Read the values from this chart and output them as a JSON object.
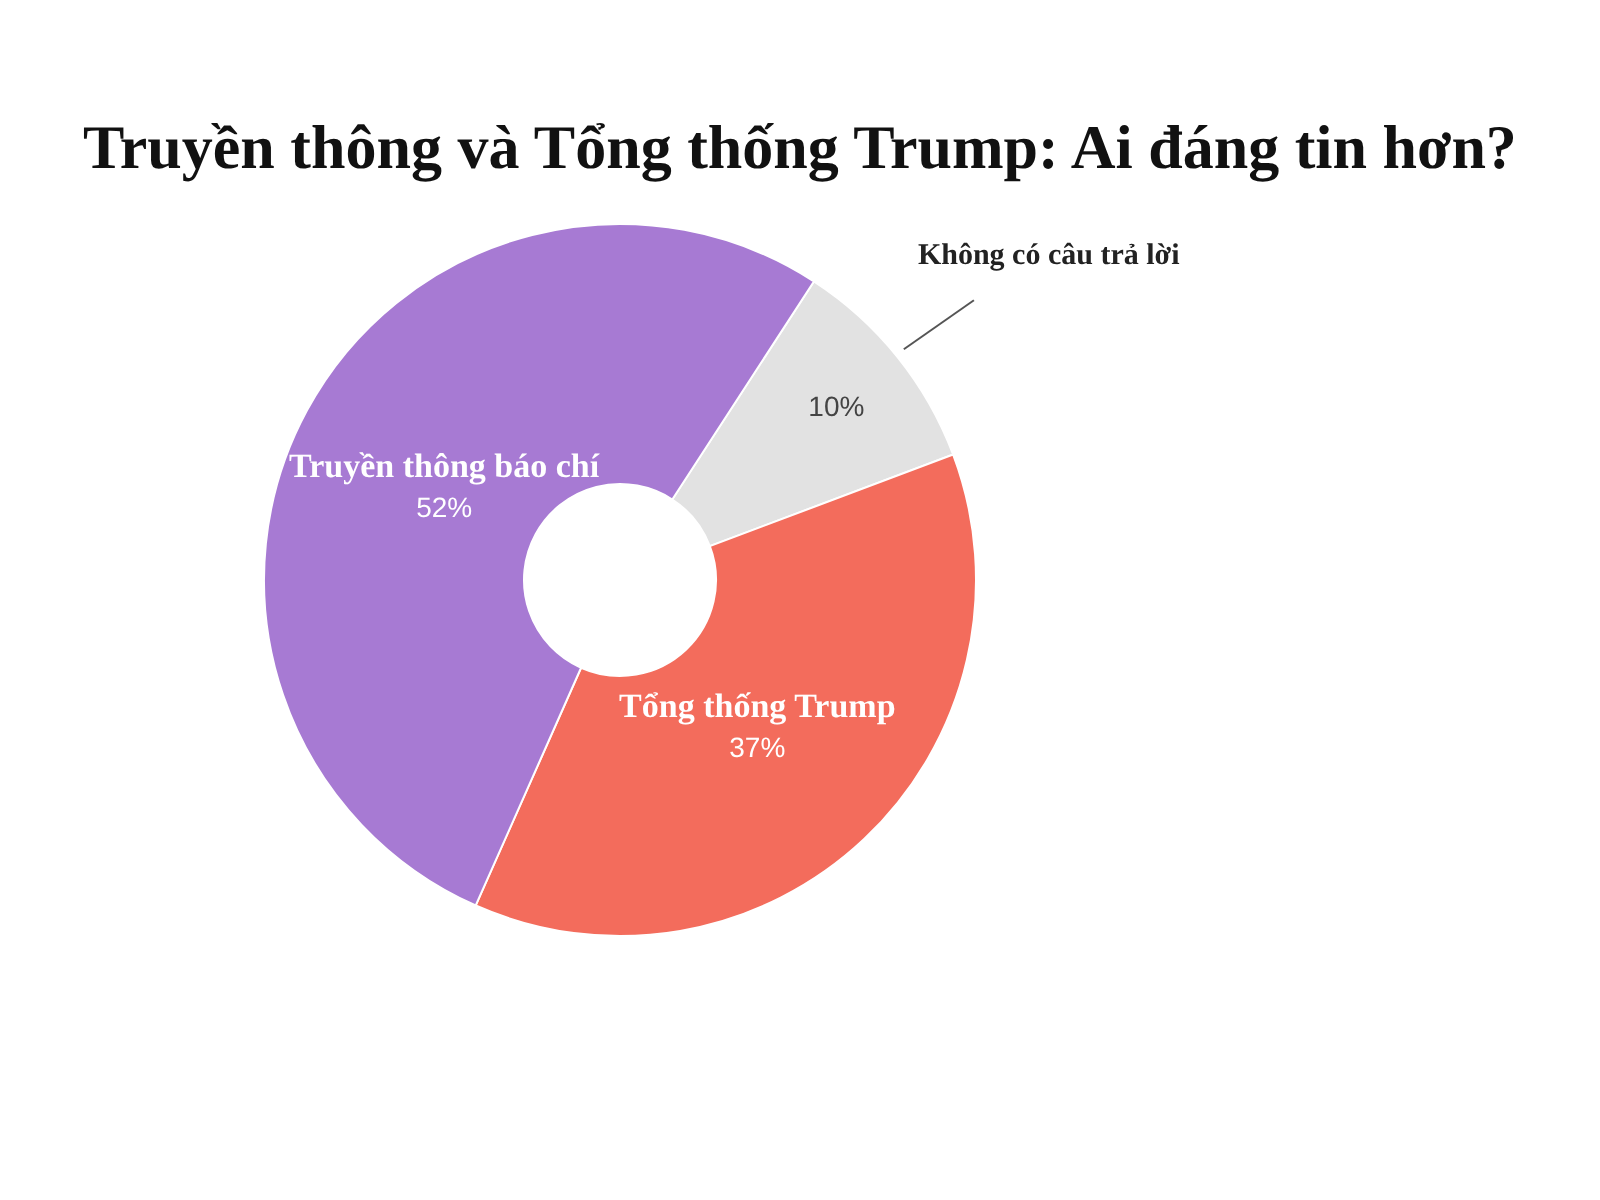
{
  "chart_data": {
    "type": "donut",
    "title": "Truyền thông và Tổng thống Trump: Ai đáng tin hơn?",
    "categories": [
      "Không có câu trả lời",
      "Tổng thống Trump",
      "Truyền thông báo chí"
    ],
    "values": [
      10,
      37,
      52
    ],
    "colors": [
      "#e2e2e2",
      "#f36c5c",
      "#a77ad3"
    ],
    "value_labels": [
      "10%",
      "37%",
      "52%"
    ]
  }
}
